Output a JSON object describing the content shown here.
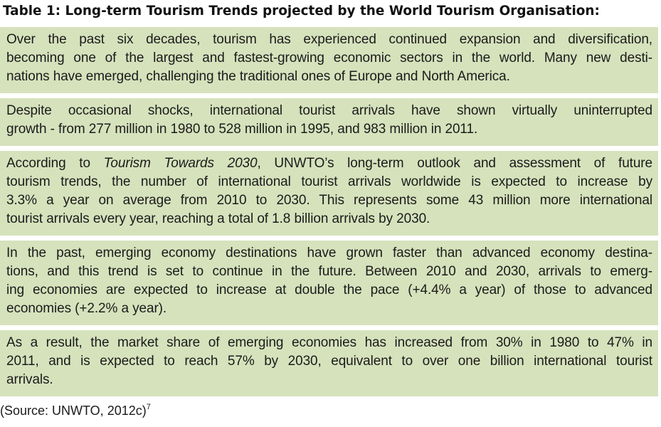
{
  "title": "Table 1: Long-term Tourism Trends projected by the World Tourism Organisation:",
  "paragraphs": [
    {
      "lines": [
        "Over the past six decades, tourism has experienced continued expansion and diversification,",
        "becoming one of the largest and fastest-growing economic sectors in the world. Many new desti-",
        "nations have emerged, challenging the traditional ones of Europe and North America."
      ]
    },
    {
      "lines": [
        "Despite occasional shocks, international tourist arrivals have shown virtually uninterrupted",
        "growth - from 277 million in 1980 to 528 million in 1995, and 983 million in 2011."
      ]
    },
    {
      "line1_pre": "According to ",
      "line1_italic": "Tourism Towards 2030",
      "line1_post": ", UNWTO’s long-term outlook and assessment of future",
      "lines": [
        "tourism trends, the number of international tourist arrivals worldwide is expected to increase by",
        "3.3% a year on average from 2010 to 2030. This represents some 43 million more international",
        "tourist arrivals every year, reaching a total of 1.8 billion arrivals by 2030."
      ]
    },
    {
      "lines": [
        "In the past, emerging economy destinations have grown faster than advanced economy destina-",
        "tions, and this trend is set to continue in the future. Between 2010 and 2030, arrivals to emerg-",
        "ing economies are expected to increase at double the pace (+4.4% a year) of those to advanced",
        "economies (+2.2% a year)."
      ]
    },
    {
      "lines": [
        "As a result, the market share of emerging economies has increased from 30% in 1980 to 47% in",
        "2011, and is expected to reach 57% by 2030, equivalent to over one billion international tourist",
        "arrivals."
      ]
    }
  ],
  "source": {
    "text": "(Source: UNWTO, 2012c)",
    "footnote": "7"
  }
}
